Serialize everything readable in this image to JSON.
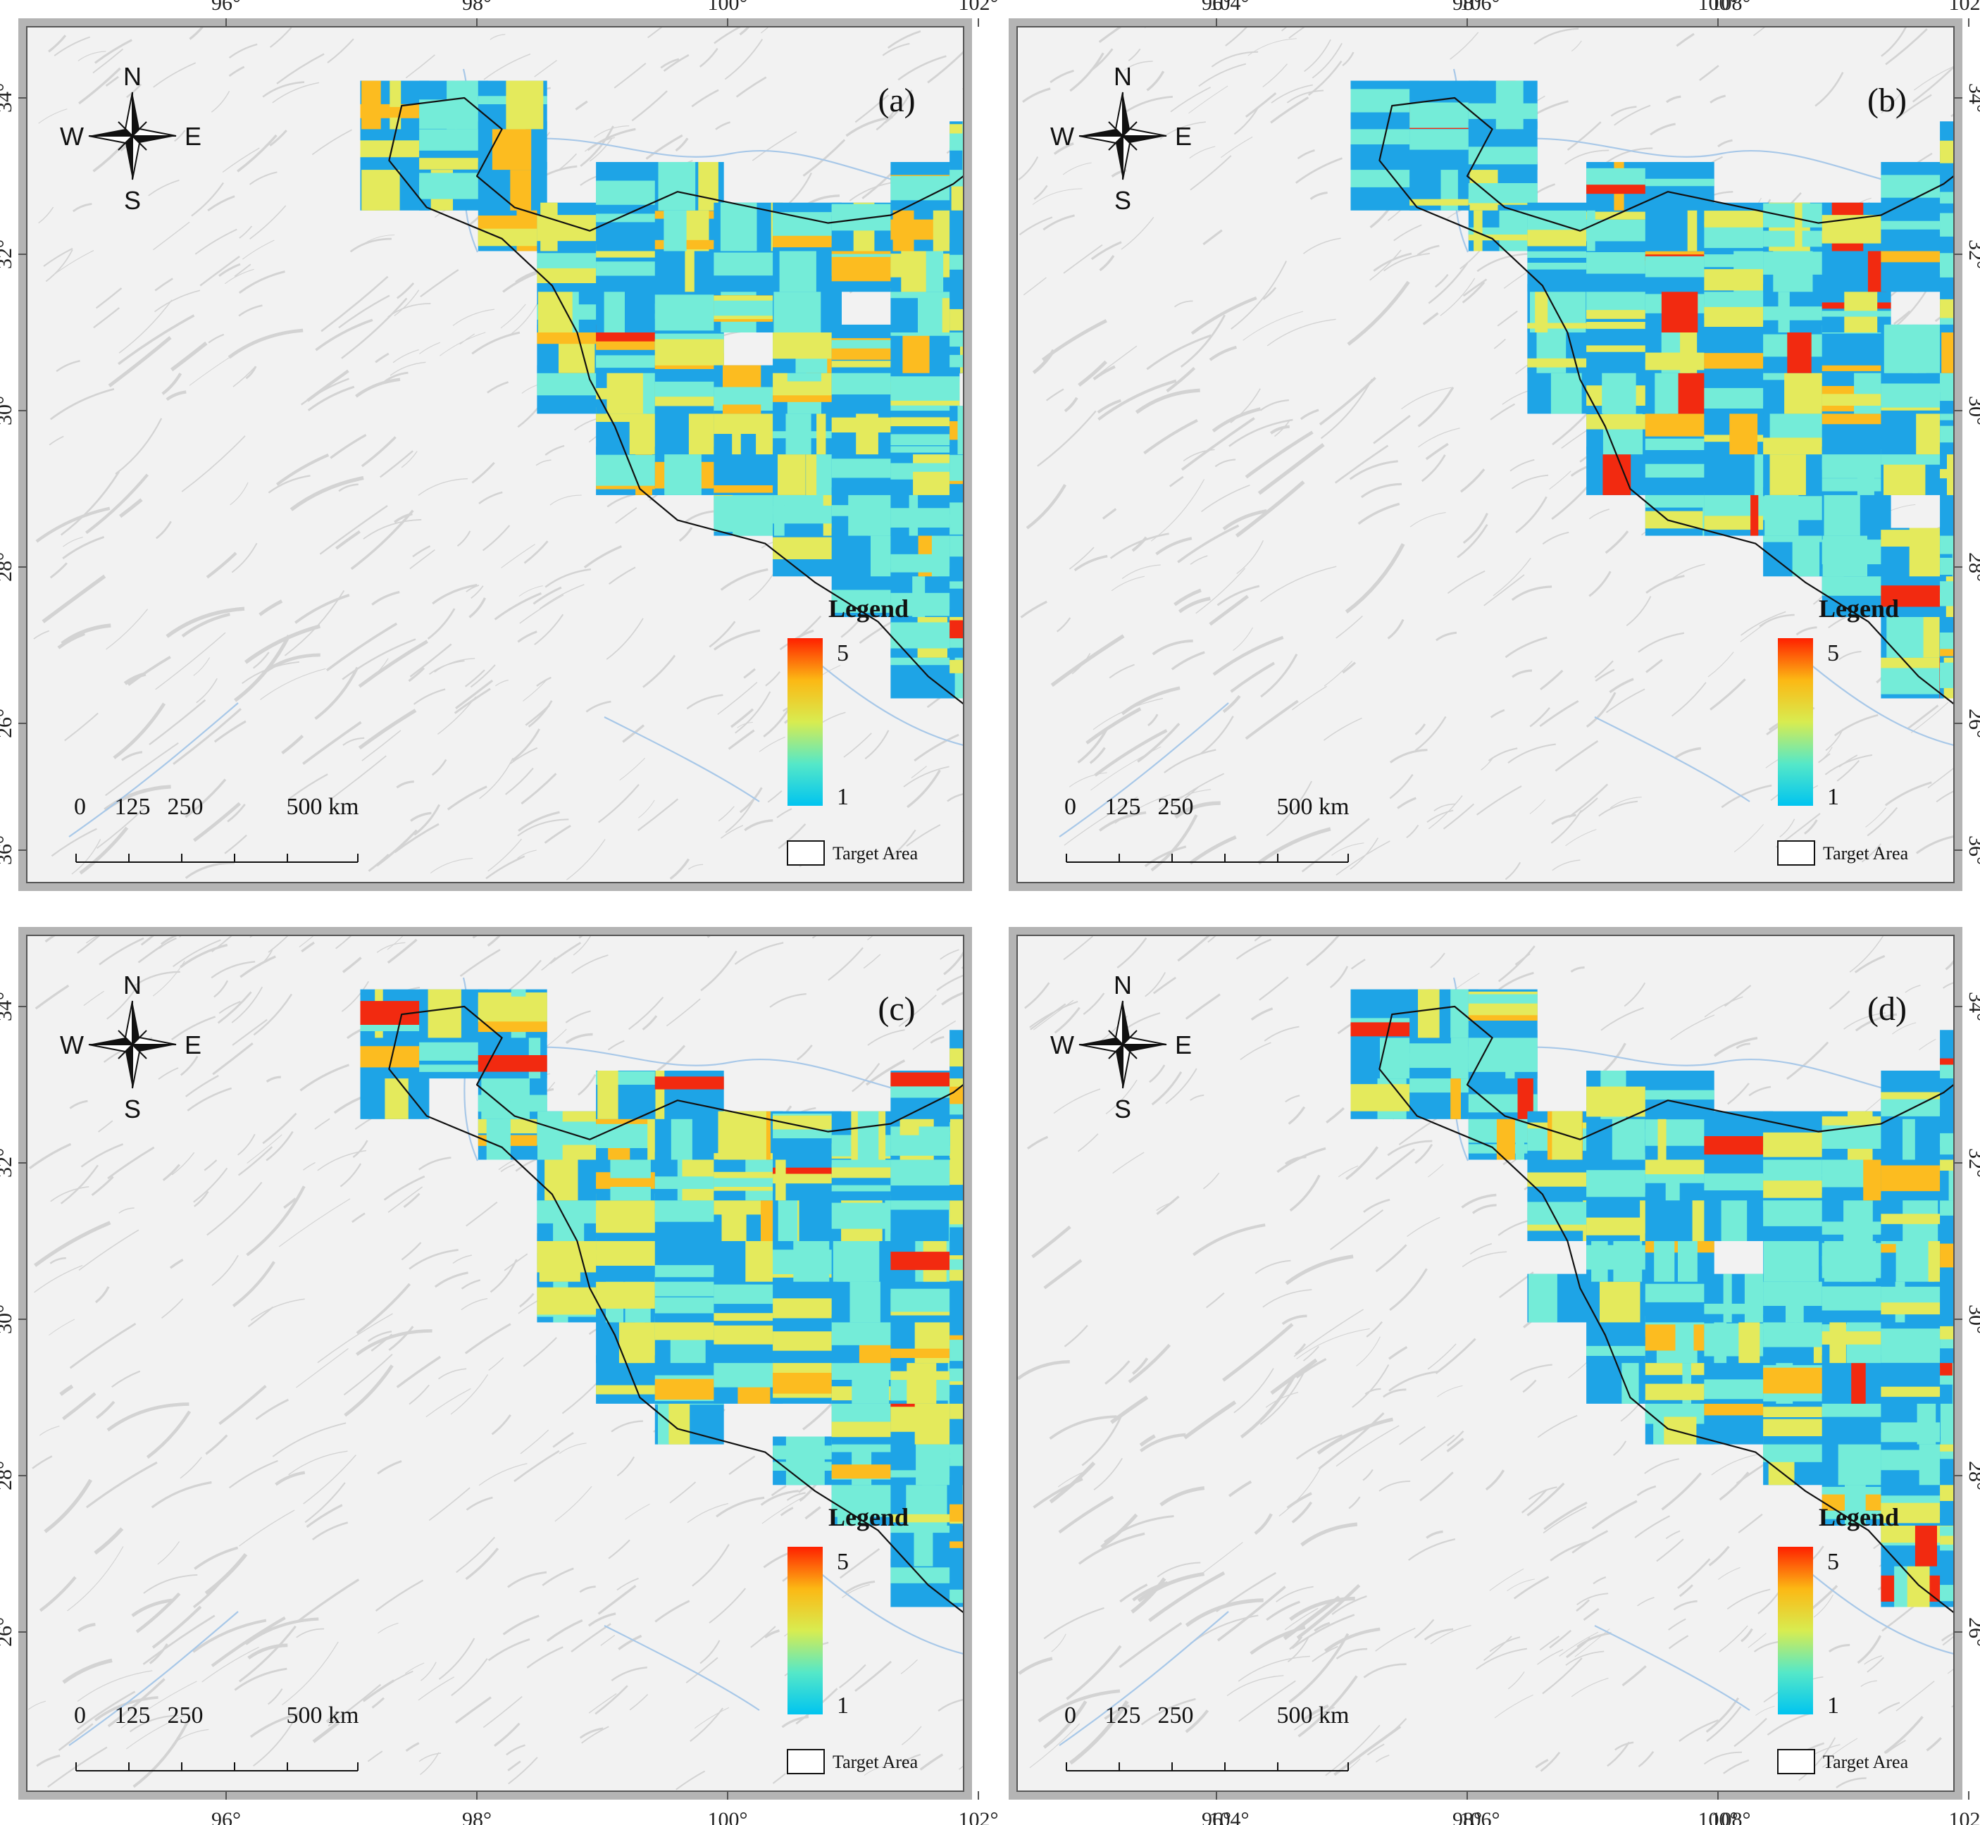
{
  "figure": {
    "panels": [
      {
        "id": "a",
        "label": "(a)",
        "intensity": 1.0,
        "seed": 11,
        "lon_side": "top",
        "lat_side": "left"
      },
      {
        "id": "b",
        "label": "(b)",
        "intensity": 0.45,
        "seed": 23,
        "lon_side": "top",
        "lat_side": "right"
      },
      {
        "id": "c",
        "label": "(c)",
        "intensity": 0.8,
        "seed": 37,
        "lon_side": "bottom",
        "lat_side": "left"
      },
      {
        "id": "d",
        "label": "(d)",
        "intensity": 0.5,
        "seed": 53,
        "lon_side": "bottom",
        "lat_side": "right"
      }
    ],
    "lon_ticks": [
      "96°",
      "98°",
      "100°",
      "102°",
      "104°",
      "106°",
      "108°"
    ],
    "lat_ticks": [
      "26°",
      "28°",
      "30°",
      "32°",
      "34°",
      "36°"
    ],
    "legend": {
      "title": "Legend",
      "max_label": "5",
      "min_label": "1",
      "target_area_label": "Target Area",
      "colors": [
        "#00c4f0",
        "#55e8c8",
        "#d8ec50",
        "#fcb814",
        "#ff2000"
      ]
    },
    "compass": {
      "n": "N",
      "s": "S",
      "e": "E",
      "w": "W"
    },
    "scale_bar": {
      "labels": [
        "0",
        "125",
        "250",
        "500 km"
      ]
    },
    "colors": {
      "tile_base": "#1ea4e6",
      "tile_level2": "#74ecd8",
      "tile_level3": "#e4ea5c",
      "tile_level4": "#fcbc20",
      "tile_level5": "#f22a10",
      "boundary": "#111111",
      "relief": "#f2f2f2",
      "frame_band": "#b4b4b4"
    },
    "icons": [
      "north-arrow-icon",
      "hillshade-basemap",
      "river-lines"
    ]
  }
}
